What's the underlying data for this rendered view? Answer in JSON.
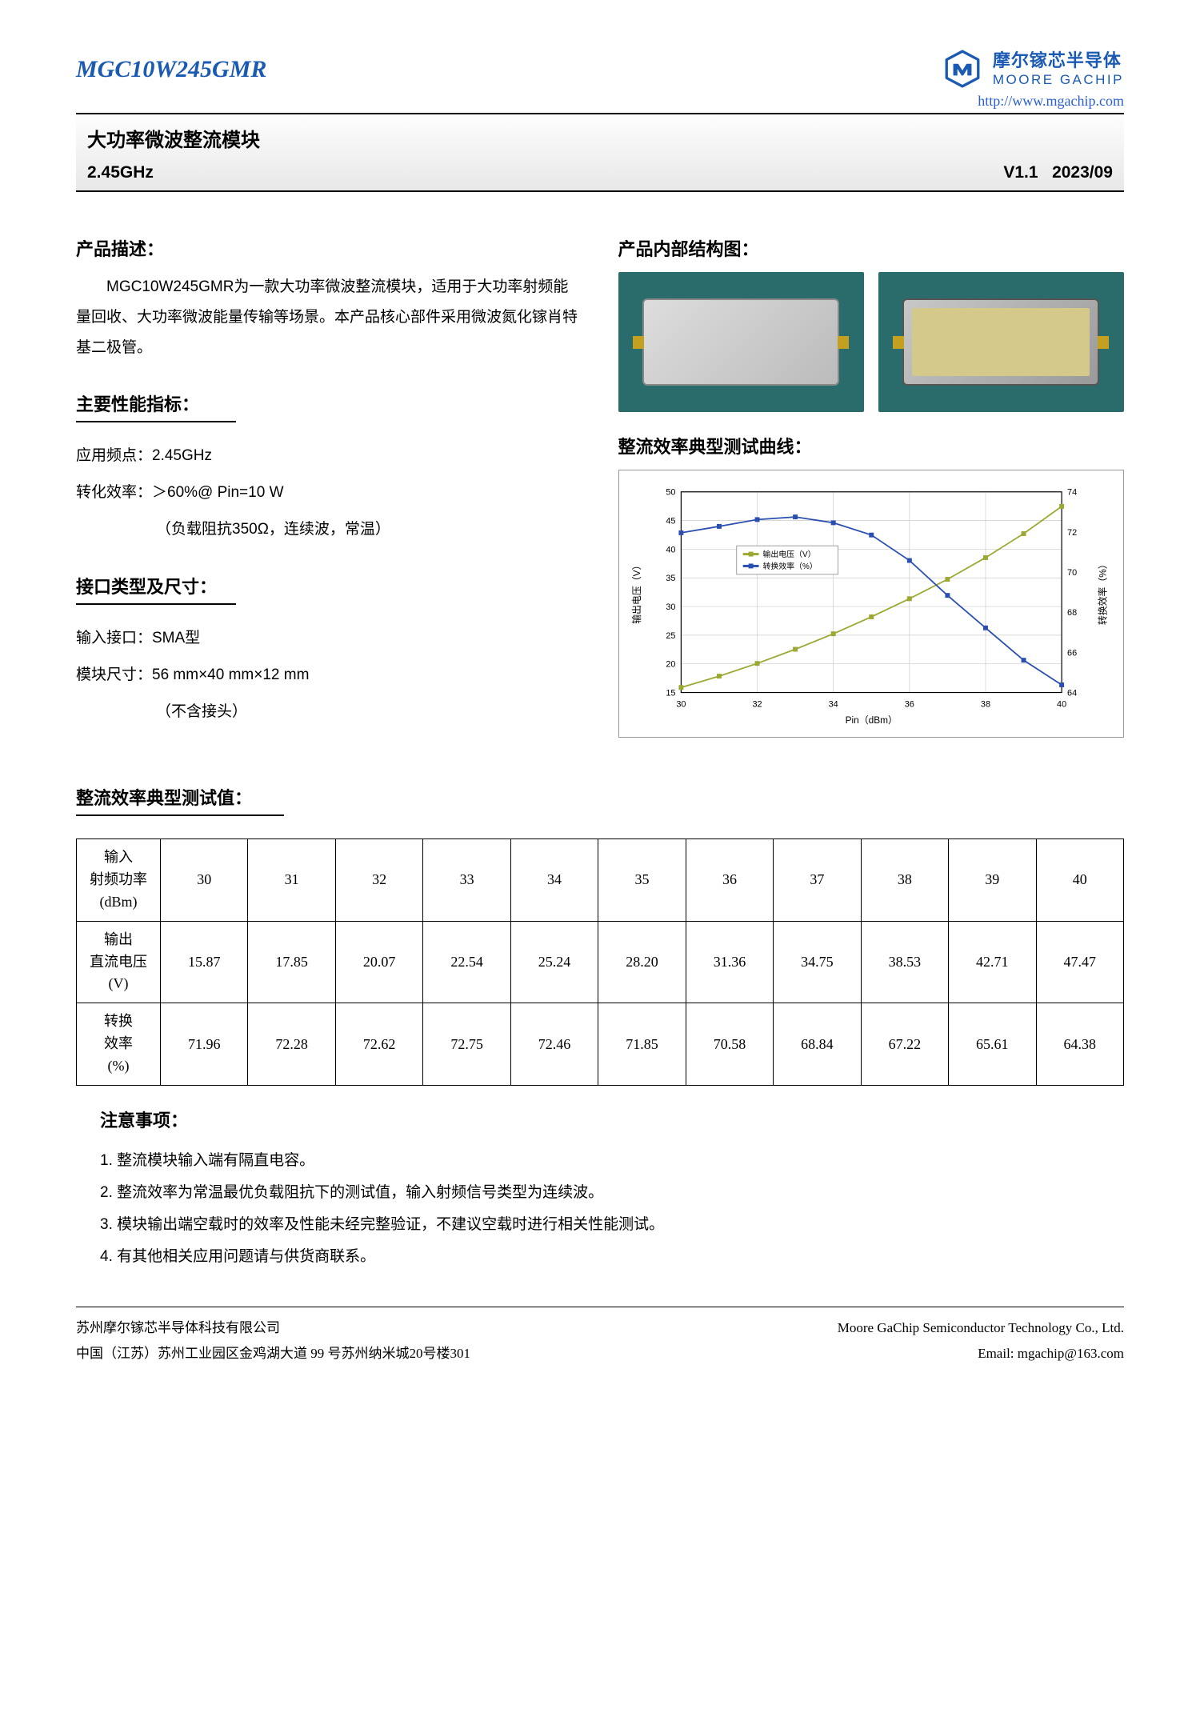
{
  "header": {
    "part_number": "MGC10W245GMR",
    "company_cn": "摩尔镓芯半导体",
    "company_en": "MOORE GACHIP",
    "url": "http://www.mgachip.com",
    "title": "大功率微波整流模块",
    "freq": "2.45GHz",
    "version": "V1.1",
    "date": "2023/09"
  },
  "section_titles": {
    "desc": "产品描述：",
    "structure": "产品内部结构图：",
    "specs": "主要性能指标：",
    "interface": "接口类型及尺寸：",
    "curve": "整流效率典型测试曲线：",
    "table": "整流效率典型测试值：",
    "notes": "注意事项："
  },
  "desc": "MGC10W245GMR为一款大功率微波整流模块，适用于大功率射频能量回收、大功率微波能量传输等场景。本产品核心部件采用微波氮化镓肖特基二极管。",
  "specs": {
    "freq": "应用频点：2.45GHz",
    "eff": "转化效率：＞60%@ Pin=10 W",
    "eff_note": "（负载阻抗350Ω，连续波，常温）"
  },
  "interface": {
    "input": "输入接口：SMA型",
    "size": "模块尺寸：56 mm×40 mm×12 mm",
    "size_note": "（不含接头）"
  },
  "chart": {
    "type": "dual-axis-line",
    "xlabel": "Pin（dBm）",
    "y1label": "输出电压（V）",
    "y2label": "转换效率（%）",
    "xlim": [
      30,
      40
    ],
    "xticks": [
      30,
      32,
      34,
      36,
      38,
      40
    ],
    "y1lim": [
      15,
      50
    ],
    "y1ticks": [
      15,
      20,
      25,
      30,
      35,
      40,
      45,
      50
    ],
    "y2lim": [
      64,
      74
    ],
    "y2ticks": [
      64,
      66,
      68,
      70,
      72,
      74
    ],
    "legend": [
      "输出电压（V）",
      "转换效率（%）"
    ],
    "series_voltage": {
      "x": [
        30,
        31,
        32,
        33,
        34,
        35,
        36,
        37,
        38,
        39,
        40
      ],
      "y": [
        15.87,
        17.85,
        20.07,
        22.54,
        25.24,
        28.2,
        31.36,
        34.75,
        38.53,
        42.71,
        47.47
      ],
      "color": "#9ca832",
      "marker": "square"
    },
    "series_eff": {
      "x": [
        30,
        31,
        32,
        33,
        34,
        35,
        36,
        37,
        38,
        39,
        40
      ],
      "y": [
        71.96,
        72.28,
        72.62,
        72.75,
        72.46,
        71.85,
        70.58,
        68.84,
        67.22,
        65.61,
        64.38
      ],
      "color": "#2a4fb0",
      "marker": "square"
    },
    "grid_color": "#cccccc",
    "axis_color": "#000",
    "legend_border": "#888",
    "font_size": 11
  },
  "table": {
    "headers": {
      "pin": "输入\n射频功率\n(dBm)",
      "vout": "输出\n直流电压\n(V)",
      "eff": "转换\n效率\n(%)"
    },
    "pin": [
      "30",
      "31",
      "32",
      "33",
      "34",
      "35",
      "36",
      "37",
      "38",
      "39",
      "40"
    ],
    "vout": [
      "15.87",
      "17.85",
      "20.07",
      "22.54",
      "25.24",
      "28.20",
      "31.36",
      "34.75",
      "38.53",
      "42.71",
      "47.47"
    ],
    "eff": [
      "71.96",
      "72.28",
      "72.62",
      "72.75",
      "72.46",
      "71.85",
      "70.58",
      "68.84",
      "67.22",
      "65.61",
      "64.38"
    ]
  },
  "notes": [
    "1. 整流模块输入端有隔直电容。",
    "2. 整流效率为常温最优负载阻抗下的测试值，输入射频信号类型为连续波。",
    "3. 模块输出端空载时的效率及性能未经完整验证，不建议空载时进行相关性能测试。",
    "4. 有其他相关应用问题请与供货商联系。"
  ],
  "footer": {
    "company_cn": "苏州摩尔镓芯半导体科技有限公司",
    "company_en": "Moore GaChip Semiconductor Technology Co., Ltd.",
    "address": "中国（江苏）苏州工业园区金鸡湖大道  99  号苏州纳米城20号楼301",
    "email": "Email:  mgachip@163.com"
  }
}
